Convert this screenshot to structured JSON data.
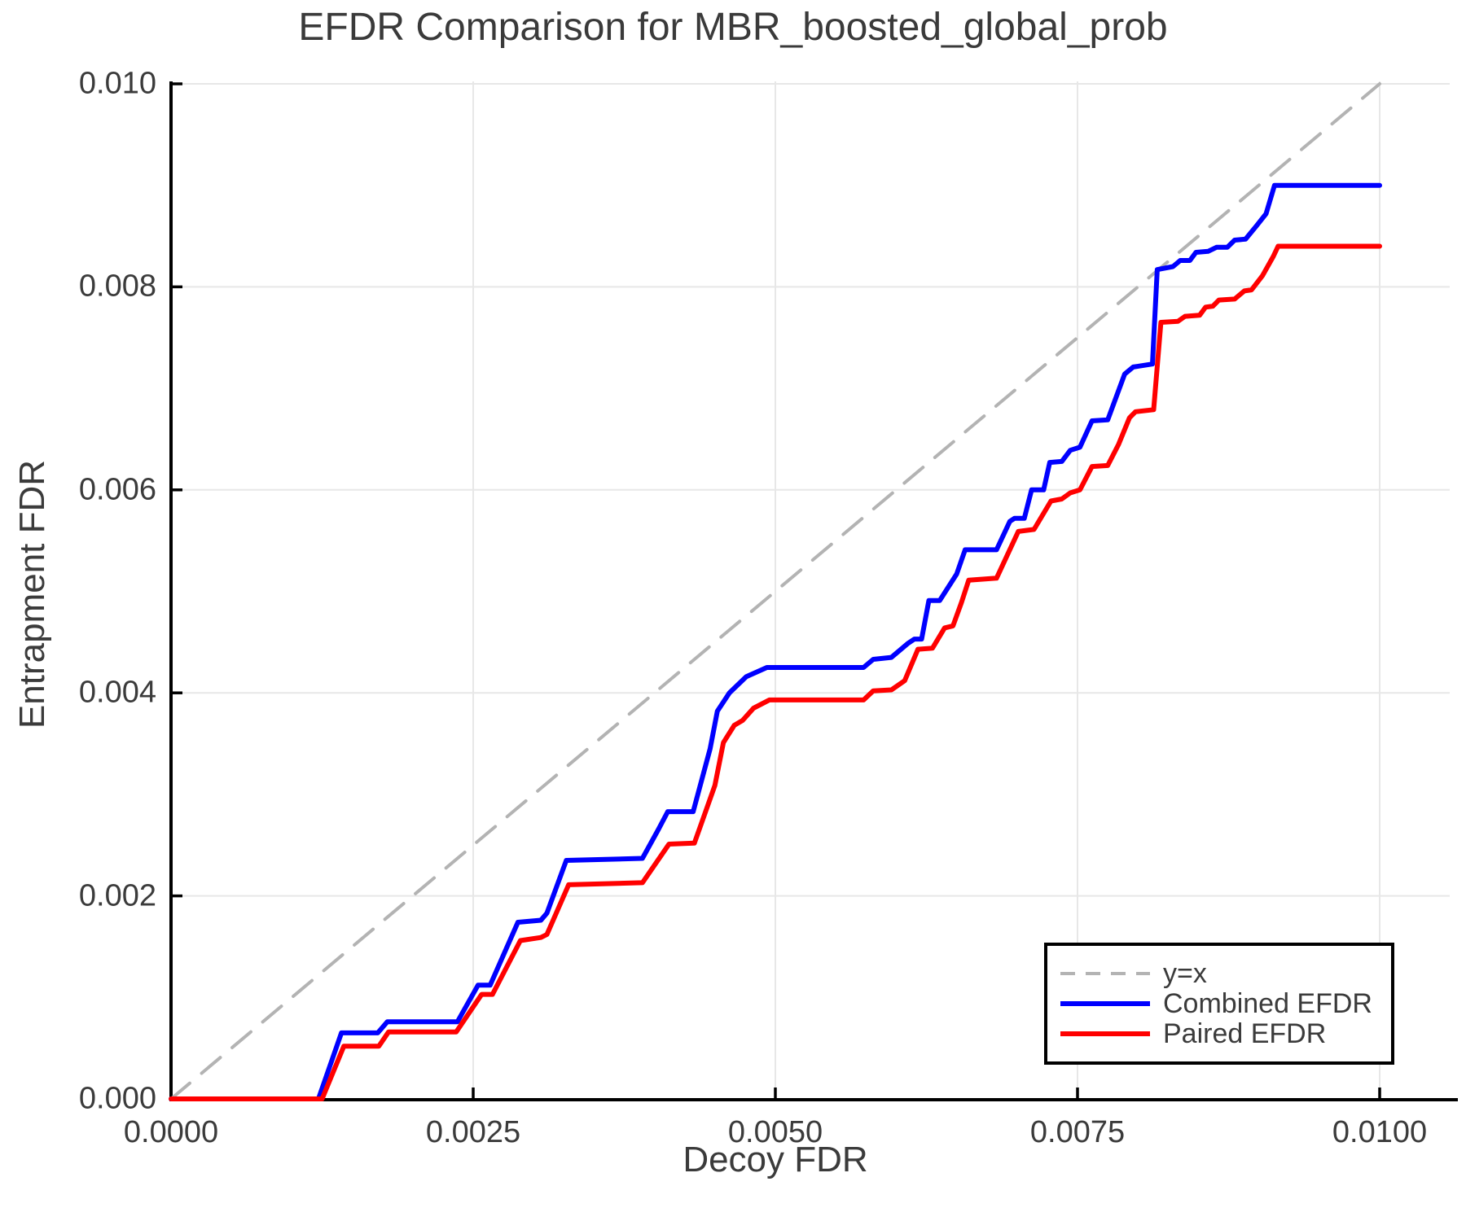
{
  "title": "EFDR Comparison for MBR_boosted_global_prob",
  "colors": {
    "text": "#3b3b3b",
    "grid": "#e7e7e7",
    "axis": "#000000",
    "legend_border": "#000000"
  },
  "chart_data": {
    "type": "line",
    "title": "EFDR Comparison for MBR_boosted_global_prob",
    "xlabel": "Decoy FDR",
    "ylabel": "Entrapment FDR",
    "xlim": [
      0,
      0.0106
    ],
    "ylim": [
      0,
      0.01
    ],
    "grid": true,
    "legend_position": "bottom-right",
    "xticks": {
      "values": [
        0,
        0.0025,
        0.005,
        0.0075,
        0.01
      ],
      "labels": [
        "0.0000",
        "0.0025",
        "0.0050",
        "0.0075",
        "0.0100"
      ]
    },
    "yticks": {
      "values": [
        0,
        0.002,
        0.004,
        0.006,
        0.008,
        0.01
      ],
      "labels": [
        "0.000",
        "0.002",
        "0.004",
        "0.006",
        "0.008",
        "0.010"
      ]
    },
    "series": [
      {
        "name": "y=x",
        "style": "dashed",
        "color": "#b3b3b3",
        "width": 4,
        "points": [
          [
            0,
            0
          ],
          [
            0.01,
            0.01
          ]
        ]
      },
      {
        "name": "Combined EFDR",
        "style": "solid",
        "color": "#0000ff",
        "width": 6,
        "points": [
          [
            0,
            0
          ],
          [
            0.00122,
            0
          ],
          [
            0.00141,
            0.00065
          ],
          [
            0.00171,
            0.00065
          ],
          [
            0.00179,
            0.00076
          ],
          [
            0.00237,
            0.00076
          ],
          [
            0.00254,
            0.00112
          ],
          [
            0.00264,
            0.00112
          ],
          [
            0.00287,
            0.00174
          ],
          [
            0.00306,
            0.00176
          ],
          [
            0.00311,
            0.00183
          ],
          [
            0.00327,
            0.00235
          ],
          [
            0.0039,
            0.00237
          ],
          [
            0.00403,
            0.00265
          ],
          [
            0.00411,
            0.00283
          ],
          [
            0.00432,
            0.00283
          ],
          [
            0.00446,
            0.00345
          ],
          [
            0.00452,
            0.00382
          ],
          [
            0.00462,
            0.004
          ],
          [
            0.00476,
            0.00416
          ],
          [
            0.00493,
            0.00425
          ],
          [
            0.00573,
            0.00425
          ],
          [
            0.00581,
            0.00433
          ],
          [
            0.00596,
            0.00435
          ],
          [
            0.0061,
            0.00449
          ],
          [
            0.00615,
            0.00453
          ],
          [
            0.00621,
            0.00453
          ],
          [
            0.00627,
            0.00491
          ],
          [
            0.00636,
            0.00491
          ],
          [
            0.0065,
            0.00517
          ],
          [
            0.00657,
            0.00541
          ],
          [
            0.00683,
            0.00541
          ],
          [
            0.00694,
            0.00569
          ],
          [
            0.00698,
            0.00572
          ],
          [
            0.00706,
            0.00572
          ],
          [
            0.00712,
            0.006
          ],
          [
            0.00722,
            0.006
          ],
          [
            0.00727,
            0.00627
          ],
          [
            0.00737,
            0.00628
          ],
          [
            0.00744,
            0.00639
          ],
          [
            0.00752,
            0.00642
          ],
          [
            0.00762,
            0.00668
          ],
          [
            0.00775,
            0.00669
          ],
          [
            0.00789,
            0.00714
          ],
          [
            0.00796,
            0.00721
          ],
          [
            0.00812,
            0.00724
          ],
          [
            0.00816,
            0.00817
          ],
          [
            0.00829,
            0.0082
          ],
          [
            0.00835,
            0.00826
          ],
          [
            0.00843,
            0.00826
          ],
          [
            0.00848,
            0.00834
          ],
          [
            0.00858,
            0.00835
          ],
          [
            0.00865,
            0.00839
          ],
          [
            0.00874,
            0.00839
          ],
          [
            0.0088,
            0.00846
          ],
          [
            0.00889,
            0.00847
          ],
          [
            0.00898,
            0.0086
          ],
          [
            0.00906,
            0.00872
          ],
          [
            0.00913,
            0.009
          ],
          [
            0.01,
            0.009
          ]
        ]
      },
      {
        "name": "Paired EFDR",
        "style": "solid",
        "color": "#ff0000",
        "width": 6,
        "points": [
          [
            0,
            0
          ],
          [
            0.00125,
            0
          ],
          [
            0.00143,
            0.00052
          ],
          [
            0.00172,
            0.00052
          ],
          [
            0.0018,
            0.00066
          ],
          [
            0.00236,
            0.00066
          ],
          [
            0.00257,
            0.00103
          ],
          [
            0.00266,
            0.00103
          ],
          [
            0.00289,
            0.00156
          ],
          [
            0.00306,
            0.00159
          ],
          [
            0.00311,
            0.00162
          ],
          [
            0.00329,
            0.00211
          ],
          [
            0.0039,
            0.00213
          ],
          [
            0.00412,
            0.00251
          ],
          [
            0.00433,
            0.00252
          ],
          [
            0.0045,
            0.00309
          ],
          [
            0.00457,
            0.00351
          ],
          [
            0.00466,
            0.00368
          ],
          [
            0.00473,
            0.00373
          ],
          [
            0.00482,
            0.00385
          ],
          [
            0.00495,
            0.00393
          ],
          [
            0.00573,
            0.00393
          ],
          [
            0.00581,
            0.00402
          ],
          [
            0.00596,
            0.00403
          ],
          [
            0.00607,
            0.00412
          ],
          [
            0.00618,
            0.00443
          ],
          [
            0.0063,
            0.00444
          ],
          [
            0.0064,
            0.00464
          ],
          [
            0.00647,
            0.00466
          ],
          [
            0.00654,
            0.00489
          ],
          [
            0.0066,
            0.00511
          ],
          [
            0.00683,
            0.00513
          ],
          [
            0.00701,
            0.00559
          ],
          [
            0.00714,
            0.00561
          ],
          [
            0.00728,
            0.00589
          ],
          [
            0.00737,
            0.00591
          ],
          [
            0.00744,
            0.00597
          ],
          [
            0.00752,
            0.006
          ],
          [
            0.00762,
            0.00623
          ],
          [
            0.00775,
            0.00624
          ],
          [
            0.00784,
            0.00645
          ],
          [
            0.00793,
            0.00671
          ],
          [
            0.00798,
            0.00677
          ],
          [
            0.00813,
            0.00679
          ],
          [
            0.00819,
            0.00765
          ],
          [
            0.00833,
            0.00766
          ],
          [
            0.00839,
            0.00771
          ],
          [
            0.00851,
            0.00772
          ],
          [
            0.00856,
            0.0078
          ],
          [
            0.00862,
            0.00781
          ],
          [
            0.00867,
            0.00787
          ],
          [
            0.0088,
            0.00788
          ],
          [
            0.00888,
            0.00796
          ],
          [
            0.00894,
            0.00797
          ],
          [
            0.00903,
            0.00811
          ],
          [
            0.00912,
            0.0083
          ],
          [
            0.00916,
            0.0084
          ],
          [
            0.01,
            0.0084
          ]
        ]
      }
    ]
  }
}
